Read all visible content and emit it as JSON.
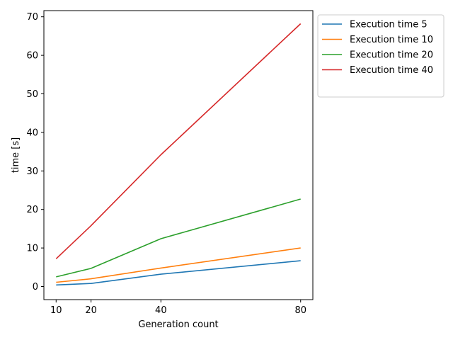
{
  "chart_data": {
    "type": "line",
    "xlabel": "Generation count",
    "ylabel": "time [s]",
    "x": [
      10,
      20,
      40,
      80
    ],
    "xticks": [
      10,
      20,
      40,
      80
    ],
    "yticks": [
      0,
      10,
      20,
      30,
      40,
      50,
      60,
      70
    ],
    "xlim": [
      6.5,
      83.5
    ],
    "ylim": [
      -3.4,
      71.6
    ],
    "grid": false,
    "legend_position": "outside upper right",
    "series": [
      {
        "name": "Execution time 5",
        "color": "#1f77b4",
        "values": [
          0.4,
          0.8,
          3.2,
          6.7
        ]
      },
      {
        "name": "Execution time 10",
        "color": "#ff7f0e",
        "values": [
          1.1,
          2.0,
          4.8,
          10.0
        ]
      },
      {
        "name": "Execution time 20",
        "color": "#2ca02c",
        "values": [
          2.5,
          4.7,
          12.4,
          22.7
        ]
      },
      {
        "name": "Execution time 40",
        "color": "#d62728",
        "values": [
          7.2,
          15.8,
          34.2,
          68.2
        ]
      }
    ]
  }
}
